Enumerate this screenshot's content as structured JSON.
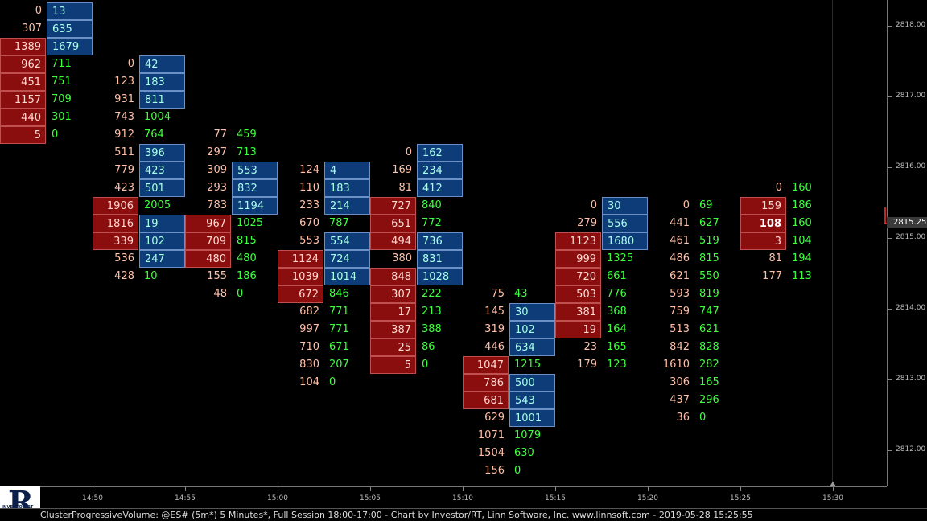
{
  "status_bar": {
    "text": "ClusterProgressiveVolume: @ES# (5m*) 5 Minutes*, Full Session 18:00-17:00 - Chart by Investor/RT, Linn Software, Inc. www.linnsoft.com - 2019-05-28 15:25:55"
  },
  "logo": {
    "letter": "R",
    "text": "INVESTOR/RT"
  },
  "price_axis": {
    "labels": [
      "2818.00",
      "2817.00",
      "2816.00",
      "2815.00",
      "2814.00",
      "2813.00",
      "2812.00"
    ],
    "current_price": "2815.25",
    "current_price_color": "#ff3030"
  },
  "time_axis": {
    "labels": [
      "14:50",
      "14:55",
      "15:00",
      "15:05",
      "15:10",
      "15:15",
      "15:20",
      "15:25",
      "15:30"
    ]
  },
  "colors": {
    "bid_text": "#ffc0a8",
    "ask_text": "#40ff40",
    "bid_highlight": "#8a0e0e",
    "ask_highlight": "#0e3c78",
    "background": "#000000"
  },
  "clusters": [
    {
      "bar": 0,
      "start_tick": 0,
      "rows": [
        {
          "bid": "0",
          "ask": "13",
          "ask_hl": true
        },
        {
          "bid": "307",
          "ask": "635",
          "ask_hl": true
        },
        {
          "bid": "1389",
          "bid_hl": true,
          "ask": "1679",
          "ask_hl": true
        },
        {
          "bid": "962",
          "bid_hl": true,
          "ask": "711"
        },
        {
          "bid": "451",
          "bid_hl": true,
          "ask": "751"
        },
        {
          "bid": "1157",
          "bid_hl": true,
          "ask": "709"
        },
        {
          "bid": "440",
          "bid_hl": true,
          "ask": "301"
        },
        {
          "bid": "5",
          "bid_hl": true,
          "ask": "0"
        }
      ]
    },
    {
      "bar": 1,
      "start_tick": 3,
      "rows": [
        {
          "bid": "0",
          "ask": "42",
          "ask_hl": true
        },
        {
          "bid": "123",
          "ask": "183",
          "ask_hl": true
        },
        {
          "bid": "931",
          "ask": "811",
          "ask_hl": true
        },
        {
          "bid": "743",
          "ask": "1004"
        },
        {
          "bid": "912",
          "ask": "764"
        },
        {
          "bid": "511",
          "ask": "396",
          "ask_hl": true
        },
        {
          "bid": "779",
          "ask": "423",
          "ask_hl": true
        },
        {
          "bid": "423",
          "ask": "501",
          "ask_hl": true
        },
        {
          "bid": "1906",
          "bid_hl": true,
          "ask": "2005"
        },
        {
          "bid": "1816",
          "bid_hl": true,
          "ask": "19",
          "ask_hl": true
        },
        {
          "bid": "339",
          "bid_hl": true,
          "ask": "102",
          "ask_hl": true
        },
        {
          "bid": "536",
          "ask": "247",
          "ask_hl": true
        },
        {
          "bid": "428",
          "ask": "10"
        }
      ]
    },
    {
      "bar": 2,
      "start_tick": 7,
      "rows": [
        {
          "bid": "77",
          "ask": "459"
        },
        {
          "bid": "297",
          "ask": "713"
        },
        {
          "bid": "309",
          "ask": "553",
          "ask_hl": true
        },
        {
          "bid": "293",
          "ask": "832",
          "ask_hl": true
        },
        {
          "bid": "783",
          "ask": "1194",
          "ask_hl": true
        },
        {
          "bid": "967",
          "bid_hl": true,
          "ask": "1025"
        },
        {
          "bid": "709",
          "bid_hl": true,
          "ask": "815"
        },
        {
          "bid": "480",
          "bid_hl": true,
          "ask": "480"
        },
        {
          "bid": "155",
          "ask": "186"
        },
        {
          "bid": "48",
          "ask": "0"
        }
      ]
    },
    {
      "bar": 3,
      "start_tick": 9,
      "rows": [
        {
          "bid": "124",
          "ask": "4",
          "ask_hl": true
        },
        {
          "bid": "110",
          "ask": "183",
          "ask_hl": true
        },
        {
          "bid": "233",
          "ask": "214",
          "ask_hl": true
        },
        {
          "bid": "670",
          "ask": "787"
        },
        {
          "bid": "553",
          "ask": "554",
          "ask_hl": true
        },
        {
          "bid": "1124",
          "bid_hl": true,
          "ask": "724",
          "ask_hl": true
        },
        {
          "bid": "1039",
          "bid_hl": true,
          "ask": "1014",
          "ask_hl": true
        },
        {
          "bid": "672",
          "bid_hl": true,
          "ask": "846"
        },
        {
          "bid": "682",
          "ask": "771"
        },
        {
          "bid": "997",
          "ask": "771"
        },
        {
          "bid": "710",
          "ask": "671"
        },
        {
          "bid": "830",
          "ask": "207"
        },
        {
          "bid": "104",
          "ask": "0"
        }
      ]
    },
    {
      "bar": 4,
      "start_tick": 8,
      "rows": [
        {
          "bid": "0",
          "ask": "162",
          "ask_hl": true
        },
        {
          "bid": "169",
          "ask": "234",
          "ask_hl": true
        },
        {
          "bid": "81",
          "ask": "412",
          "ask_hl": true
        },
        {
          "bid": "727",
          "bid_hl": true,
          "ask": "840"
        },
        {
          "bid": "651",
          "bid_hl": true,
          "ask": "772"
        },
        {
          "bid": "494",
          "bid_hl": true,
          "ask": "736",
          "ask_hl": true
        },
        {
          "bid": "380",
          "ask": "831",
          "ask_hl": true
        },
        {
          "bid": "848",
          "bid_hl": true,
          "ask": "1028",
          "ask_hl": true
        },
        {
          "bid": "307",
          "bid_hl": true,
          "ask": "222"
        },
        {
          "bid": "17",
          "bid_hl": true,
          "ask": "213"
        },
        {
          "bid": "387",
          "bid_hl": true,
          "ask": "388"
        },
        {
          "bid": "25",
          "bid_hl": true,
          "ask": "86"
        },
        {
          "bid": "5",
          "bid_hl": true,
          "ask": "0"
        }
      ]
    },
    {
      "bar": 5,
      "start_tick": 16,
      "rows": [
        {
          "bid": "75",
          "ask": "43"
        },
        {
          "bid": "145",
          "ask": "30",
          "ask_hl": true
        },
        {
          "bid": "319",
          "ask": "102",
          "ask_hl": true
        },
        {
          "bid": "446",
          "ask": "634",
          "ask_hl": true
        },
        {
          "bid": "1047",
          "bid_hl": true,
          "ask": "1215"
        },
        {
          "bid": "786",
          "bid_hl": true,
          "ask": "500",
          "ask_hl": true
        },
        {
          "bid": "681",
          "bid_hl": true,
          "ask": "543",
          "ask_hl": true
        },
        {
          "bid": "629",
          "ask": "1001",
          "ask_hl": true
        },
        {
          "bid": "1071",
          "ask": "1079"
        },
        {
          "bid": "1504",
          "ask": "630"
        },
        {
          "bid": "156",
          "ask": "0"
        }
      ]
    },
    {
      "bar": 6,
      "start_tick": 11,
      "rows": [
        {
          "bid": "0",
          "ask": "30",
          "ask_hl": true
        },
        {
          "bid": "279",
          "ask": "556",
          "ask_hl": true
        },
        {
          "bid": "1123",
          "bid_hl": true,
          "ask": "1680",
          "ask_hl": true
        },
        {
          "bid": "999",
          "bid_hl": true,
          "ask": "1325"
        },
        {
          "bid": "720",
          "bid_hl": true,
          "ask": "661"
        },
        {
          "bid": "503",
          "bid_hl": true,
          "ask": "776"
        },
        {
          "bid": "381",
          "bid_hl": true,
          "ask": "368"
        },
        {
          "bid": "19",
          "bid_hl": true,
          "ask": "164"
        },
        {
          "bid": "23",
          "ask": "165"
        },
        {
          "bid": "179",
          "ask": "123"
        }
      ]
    },
    {
      "bar": 7,
      "start_tick": 11,
      "rows": [
        {
          "bid": "0",
          "ask": "69"
        },
        {
          "bid": "441",
          "ask": "627"
        },
        {
          "bid": "461",
          "ask": "519"
        },
        {
          "bid": "486",
          "ask": "815"
        },
        {
          "bid": "621",
          "ask": "550"
        },
        {
          "bid": "593",
          "ask": "819"
        },
        {
          "bid": "759",
          "ask": "747"
        },
        {
          "bid": "513",
          "ask": "621"
        },
        {
          "bid": "842",
          "ask": "828"
        },
        {
          "bid": "1610",
          "ask": "282"
        },
        {
          "bid": "306",
          "ask": "165"
        },
        {
          "bid": "437",
          "ask": "296"
        },
        {
          "bid": "36",
          "ask": "0"
        }
      ]
    },
    {
      "bar": 8,
      "start_tick": 10,
      "rows": [
        {
          "bid": "0",
          "ask": "160"
        },
        {
          "bid": "159",
          "bid_hl": true,
          "ask": "186"
        },
        {
          "bid": "108",
          "bid_hl": true,
          "poc": true,
          "ask": "160"
        },
        {
          "bid": "3",
          "bid_hl": true,
          "ask": "104"
        },
        {
          "bid": "81",
          "ask": "194"
        },
        {
          "bid": "177",
          "ask": "113"
        }
      ]
    }
  ]
}
